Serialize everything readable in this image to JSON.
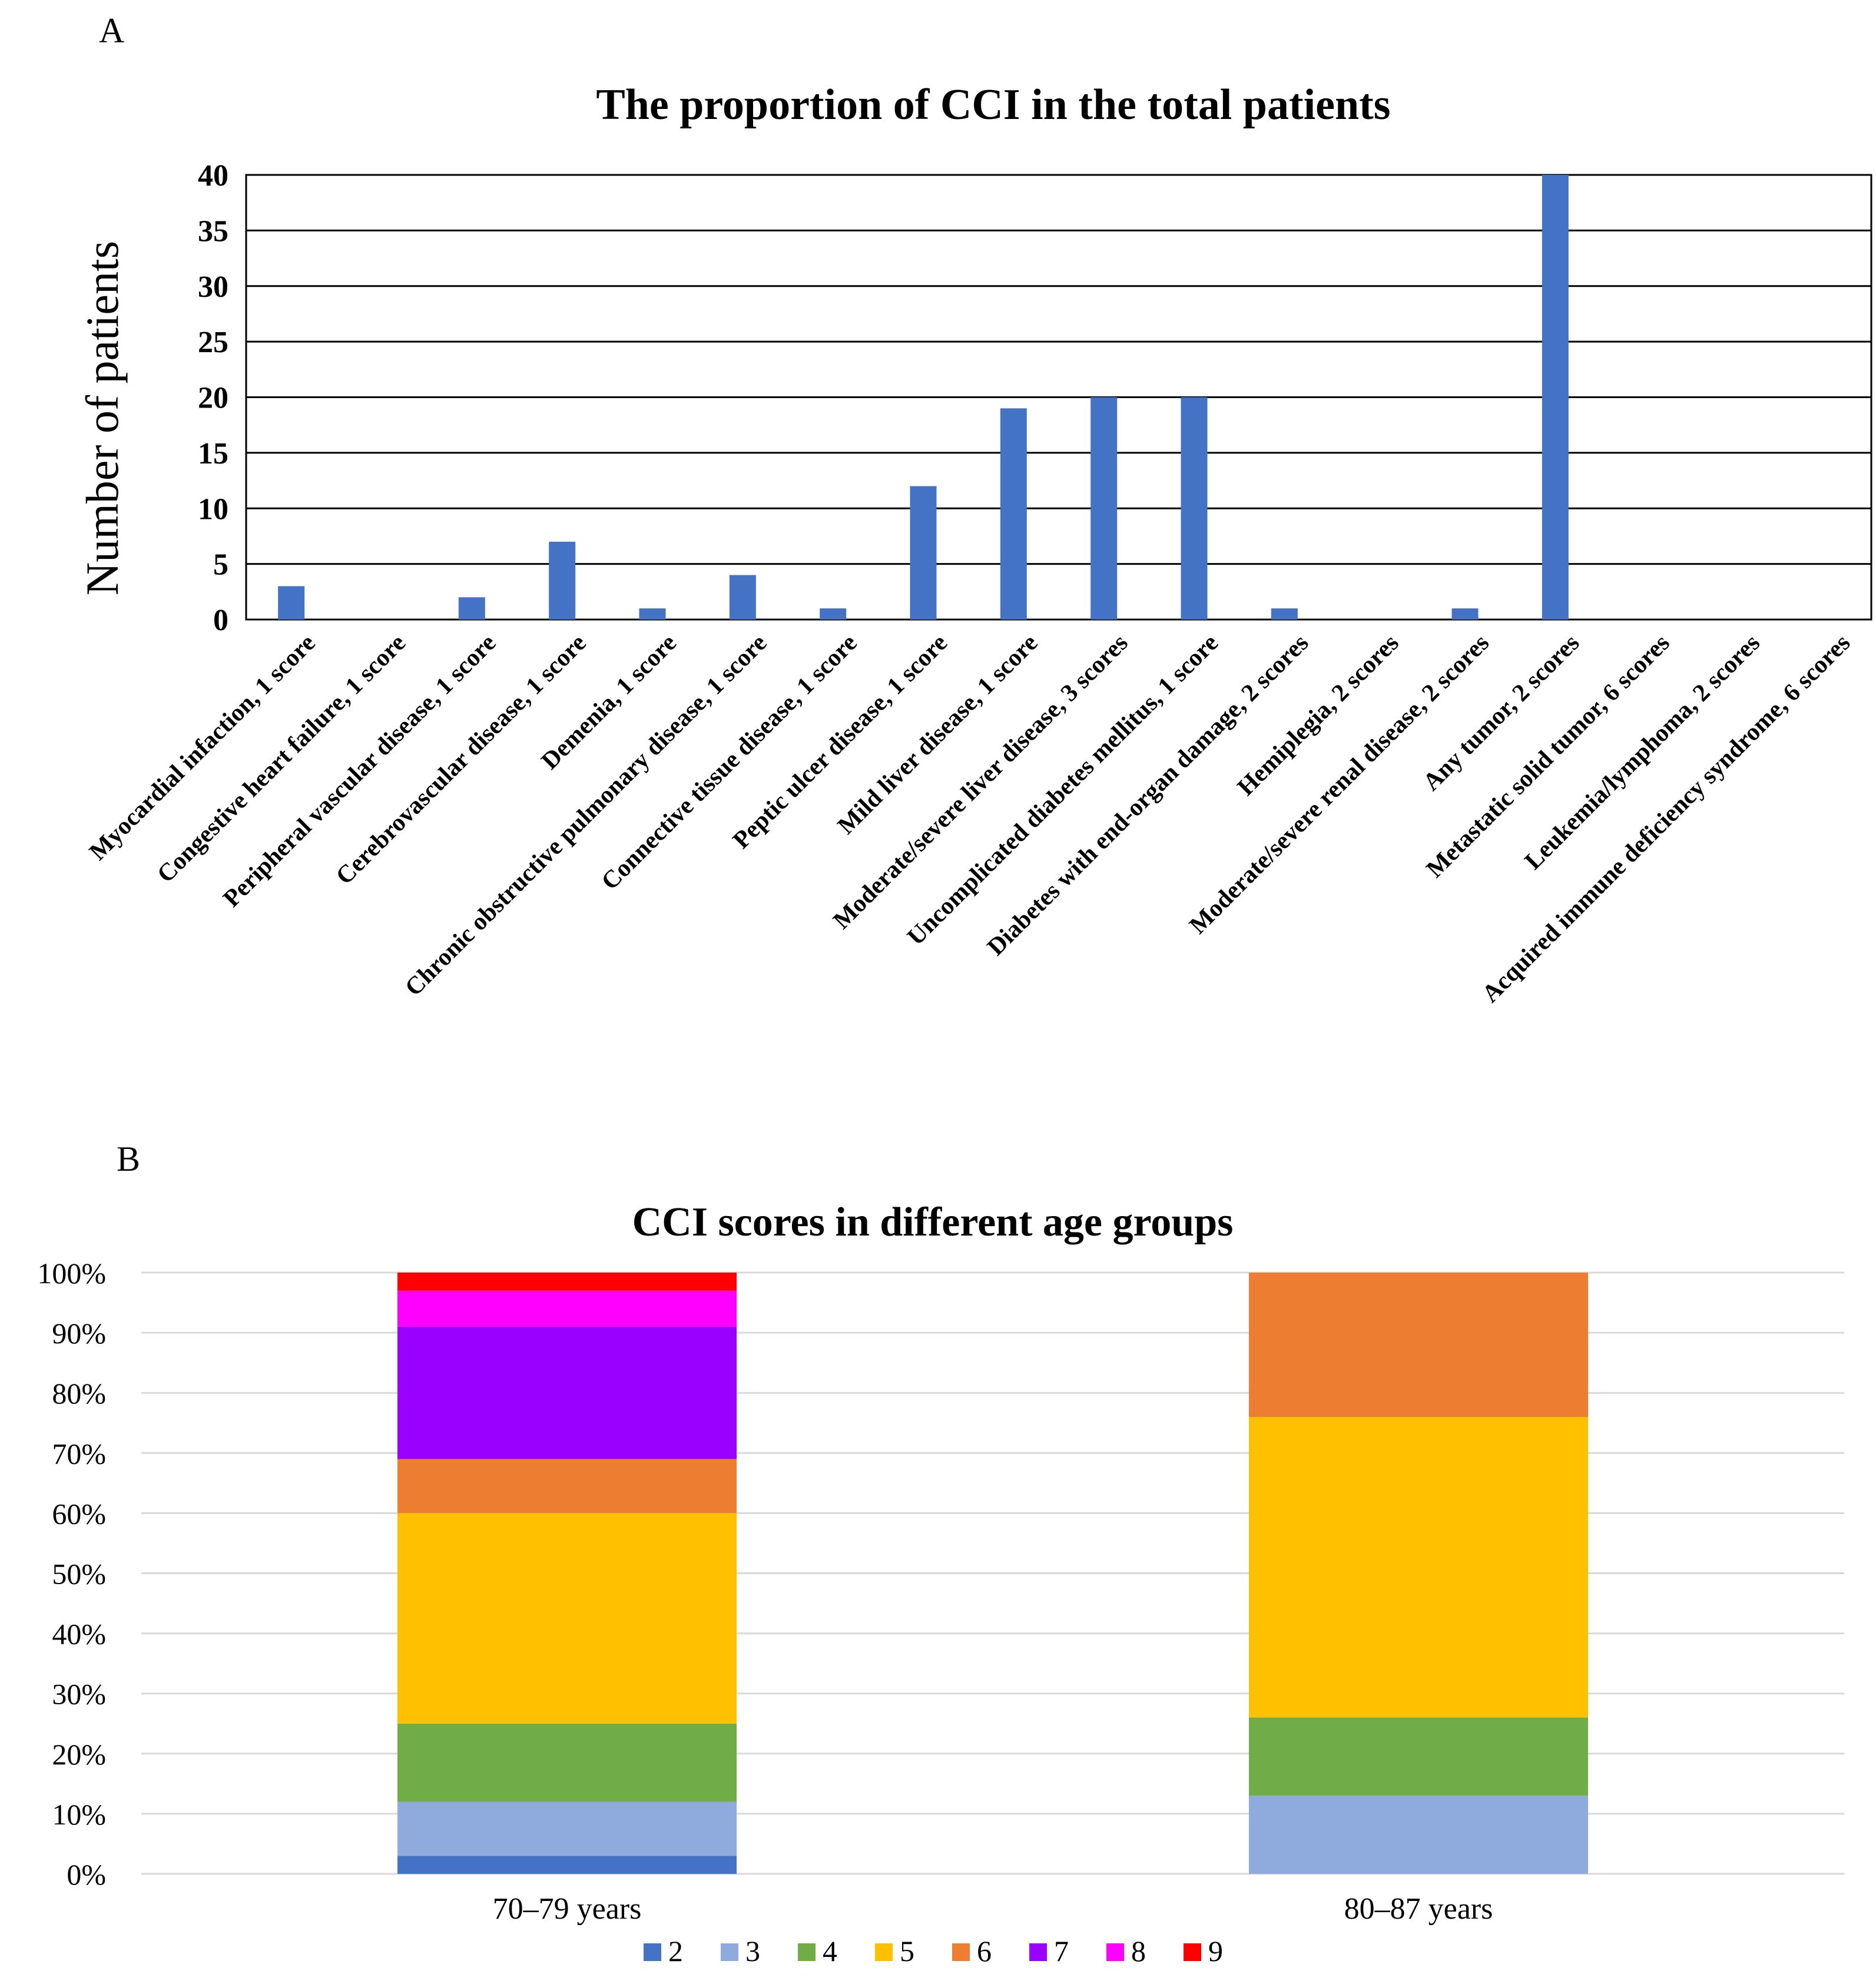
{
  "panels": {
    "a_label": "A",
    "b_label": "B"
  },
  "chart_data": [
    {
      "type": "bar",
      "title": "The proportion of CCI in the total patients",
      "xlabel": "",
      "ylabel": "Number of patients",
      "ylim": [
        0,
        40
      ],
      "yticks": [
        0,
        5,
        10,
        15,
        20,
        25,
        30,
        35,
        40
      ],
      "grid": true,
      "color": "#4472C4",
      "categories": [
        "Myocardial infaction, 1 score",
        "Congestive heart failure, 1 score",
        "Peripheral vascular disease, 1 score",
        "Cerebrovascular disease, 1 score",
        "Demenia, 1 score",
        "Chronic obstructive pulmonary disease, 1 score",
        "Connective tissue disease, 1 score",
        "Peptic ulcer disease, 1 score",
        "Mild liver disease, 1 score",
        "Moderate/severe liver disease, 3 scores",
        "Uncomplicated diabetes mellitus, 1 score",
        "Diabetes with end-organ damage, 2 scores",
        "Hemiplegia, 2 scores",
        "Moderate/severe renal disease, 2 scores",
        "Any tumor, 2 scores",
        "Metastatic solid tumor, 6 scores",
        "Leukemia/lymphoma, 2 scores",
        "Acquired immune deficiency syndrome, 6 scores"
      ],
      "values": [
        3,
        0,
        2,
        7,
        1,
        4,
        1,
        12,
        19,
        20,
        20,
        1,
        0,
        1,
        40,
        0,
        0,
        0
      ]
    },
    {
      "type": "bar",
      "stacked": true,
      "percent": true,
      "title": "CCI scores in different age groups",
      "xlabel": "",
      "ylabel": "",
      "ylim": [
        0,
        100
      ],
      "yticks": [
        "0%",
        "10%",
        "20%",
        "30%",
        "40%",
        "50%",
        "60%",
        "70%",
        "80%",
        "90%",
        "100%"
      ],
      "grid": true,
      "legend_position": "bottom",
      "categories": [
        "70–79 years",
        "80–87 years"
      ],
      "series": [
        {
          "name": "2",
          "color": "#4472C4",
          "values": [
            3,
            0
          ]
        },
        {
          "name": "3",
          "color": "#8FAADC",
          "values": [
            9,
            13
          ]
        },
        {
          "name": "4",
          "color": "#70AD47",
          "values": [
            13,
            13
          ]
        },
        {
          "name": "5",
          "color": "#FFC000",
          "values": [
            35,
            50
          ]
        },
        {
          "name": "6",
          "color": "#ED7D31",
          "values": [
            9,
            24
          ]
        },
        {
          "name": "7",
          "color": "#9900FF",
          "values": [
            22,
            0
          ]
        },
        {
          "name": "8",
          "color": "#FF00FF",
          "values": [
            6,
            0
          ]
        },
        {
          "name": "9",
          "color": "#FF0000",
          "values": [
            3,
            0
          ]
        }
      ]
    }
  ]
}
